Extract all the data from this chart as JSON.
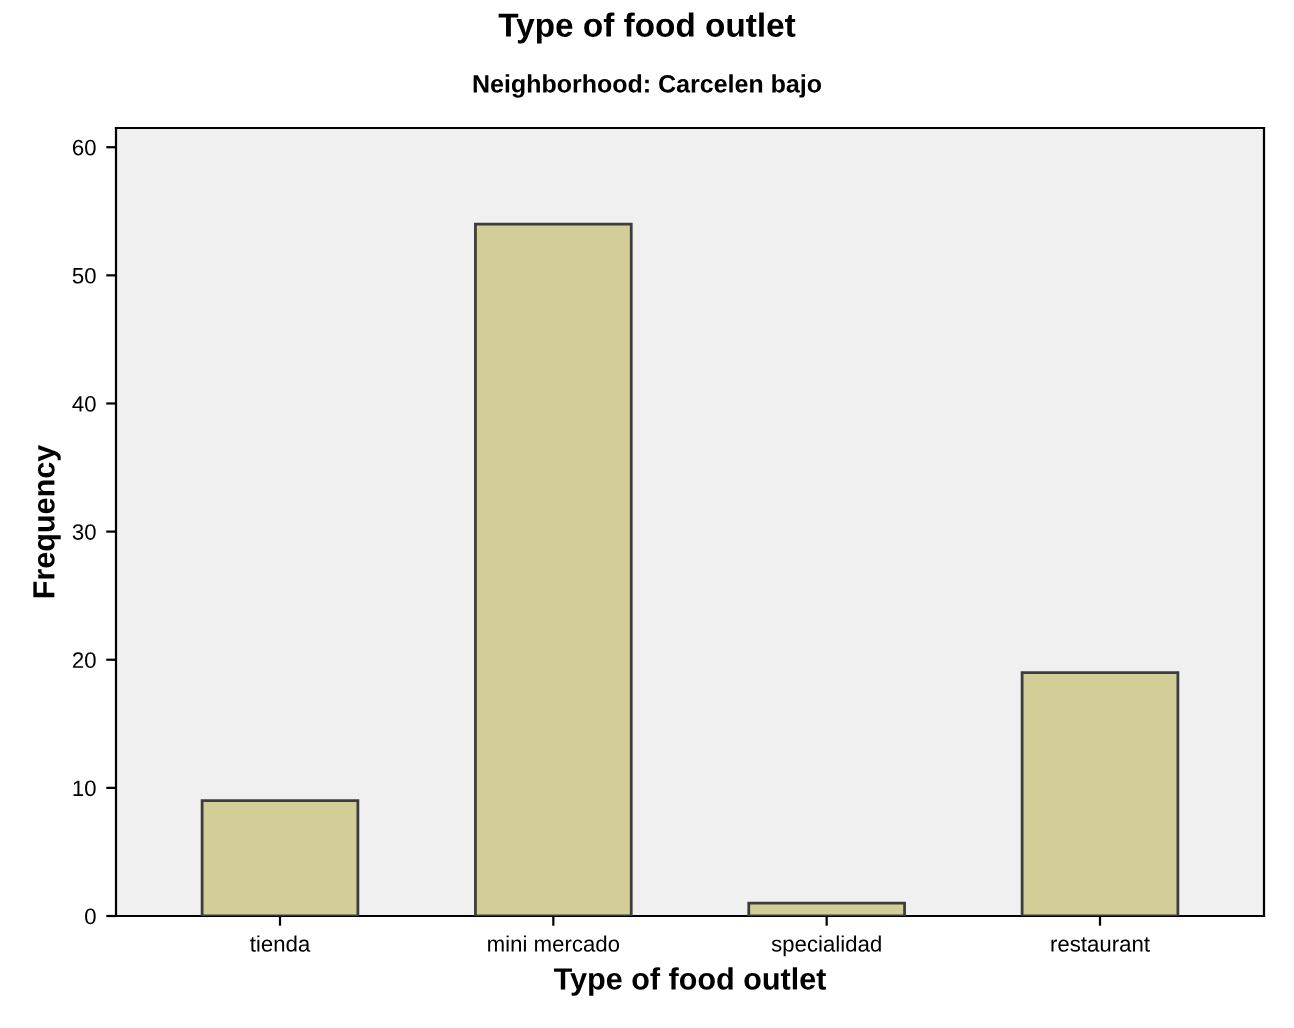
{
  "chart_data": {
    "type": "bar",
    "title": "Type of food outlet",
    "subtitle": "Neighborhood: Carcelen bajo",
    "xlabel": "Type of food outlet",
    "ylabel": "Frequency",
    "categories": [
      "tienda",
      "mini mercado",
      "specialidad",
      "restaurant"
    ],
    "values": [
      9,
      54,
      1,
      19
    ],
    "color": "#d3ce97",
    "ylim": [
      0,
      61.5
    ],
    "yticks": [
      0,
      10,
      20,
      30,
      40,
      50,
      60
    ],
    "grid": false
  }
}
